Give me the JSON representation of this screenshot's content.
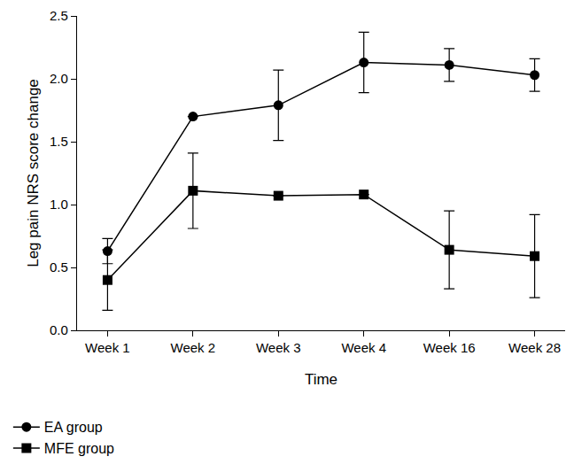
{
  "chart_data": {
    "type": "line",
    "x_label": "Time",
    "y_label": "Leg pain NRS score change",
    "categories": [
      "Week 1",
      "Week 2",
      "Week 3",
      "Week 4",
      "Week 16",
      "Week 28"
    ],
    "series": [
      {
        "name": "EA group",
        "color": "#000000",
        "marker": "circle",
        "values": [
          0.63,
          1.7,
          1.79,
          2.13,
          2.11,
          2.03
        ],
        "errors": [
          0.1,
          0.0,
          0.28,
          0.24,
          0.13,
          0.13
        ]
      },
      {
        "name": "MFE group",
        "color": "#000000",
        "marker": "square",
        "values": [
          0.4,
          1.11,
          1.07,
          1.08,
          0.64,
          0.59
        ],
        "errors": [
          0.24,
          0.3,
          0.0,
          0.0,
          0.31,
          0.33
        ]
      }
    ],
    "ylim": [
      0,
      2.5
    ],
    "yticks": [
      {
        "value": 0,
        "label": "0.0"
      },
      0.5,
      {
        "value": 1,
        "label": "1.0"
      },
      1.5,
      {
        "value": 2,
        "label": "2.0"
      },
      2.5
    ],
    "grid": false,
    "legend": "bottom left"
  }
}
